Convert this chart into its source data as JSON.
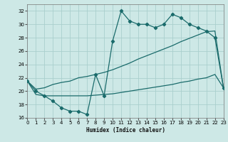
{
  "xlabel": "Humidex (Indice chaleur)",
  "background_color": "#cde8e6",
  "grid_color": "#aacfcd",
  "line_color": "#1a6b6b",
  "xlim": [
    0,
    23
  ],
  "ylim": [
    16,
    33
  ],
  "xticks": [
    0,
    1,
    2,
    3,
    4,
    5,
    6,
    7,
    8,
    9,
    10,
    11,
    12,
    13,
    14,
    15,
    16,
    17,
    18,
    19,
    20,
    21,
    22,
    23
  ],
  "yticks": [
    16,
    18,
    20,
    22,
    24,
    26,
    28,
    30,
    32
  ],
  "s1_x": [
    0,
    1,
    2,
    3,
    4,
    5,
    6,
    7,
    8,
    9,
    10,
    11,
    12,
    13,
    14,
    15,
    16,
    17,
    18,
    19,
    20,
    21,
    22,
    23
  ],
  "s1_y": [
    21.5,
    20.0,
    19.3,
    18.5,
    17.5,
    17.0,
    17.0,
    16.5,
    22.5,
    19.3,
    27.5,
    32.0,
    30.5,
    30.0,
    30.0,
    29.5,
    30.0,
    31.5,
    31.0,
    30.0,
    29.5,
    29.0,
    28.0,
    20.5
  ],
  "s2_x": [
    0,
    1,
    2,
    3,
    4,
    5,
    6,
    7,
    8,
    9,
    10,
    11,
    12,
    13,
    14,
    15,
    16,
    17,
    18,
    19,
    20,
    21,
    22,
    23
  ],
  "s2_y": [
    21.5,
    20.3,
    20.5,
    21.0,
    21.3,
    21.5,
    22.0,
    22.2,
    22.5,
    22.8,
    23.2,
    23.7,
    24.2,
    24.8,
    25.3,
    25.8,
    26.3,
    26.8,
    27.4,
    27.9,
    28.4,
    28.9,
    29.0,
    20.5
  ],
  "s3_x": [
    0,
    1,
    2,
    3,
    4,
    5,
    6,
    7,
    8,
    9,
    10,
    11,
    12,
    13,
    14,
    15,
    16,
    17,
    18,
    19,
    20,
    21,
    22,
    23
  ],
  "s3_y": [
    21.5,
    19.5,
    19.3,
    19.3,
    19.3,
    19.3,
    19.3,
    19.3,
    19.4,
    19.5,
    19.6,
    19.8,
    20.0,
    20.2,
    20.4,
    20.6,
    20.8,
    21.0,
    21.3,
    21.5,
    21.8,
    22.0,
    22.5,
    20.5
  ]
}
